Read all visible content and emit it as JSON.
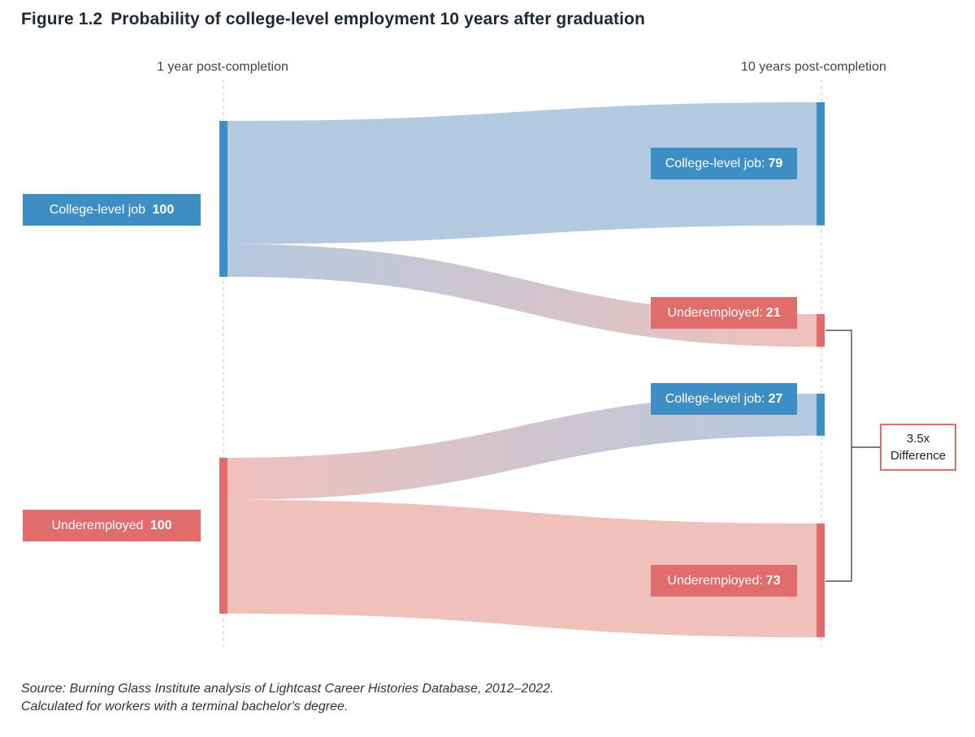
{
  "figure_number": "Figure 1.2",
  "title": "Probability of college-level employment 10 years after graduation",
  "chart_data": {
    "type": "sankey",
    "stages": [
      "1 year post-completion",
      "10 years post-completion"
    ],
    "sources": [
      {
        "name": "College-level job",
        "value": 100,
        "color": "#3d8ec4"
      },
      {
        "name": "Underemployed",
        "value": 100,
        "color": "#e06c6c"
      }
    ],
    "flows": [
      {
        "from": "College-level job",
        "to": "College-level job",
        "label": "College-level job:",
        "value": 79
      },
      {
        "from": "College-level job",
        "to": "Underemployed",
        "label": "Underemployed:",
        "value": 21
      },
      {
        "from": "Underemployed",
        "to": "College-level job",
        "label": "College-level job:",
        "value": 27
      },
      {
        "from": "Underemployed",
        "to": "Underemployed",
        "label": "Underemployed:",
        "value": 73
      }
    ],
    "annotation": {
      "line1": "3.5x",
      "line2": "Difference"
    },
    "colors": {
      "blue": "#3d8ec4",
      "red": "#e06c6c",
      "blue_flow": "#b3c9e0",
      "red_flow": "#f0c0bb"
    }
  },
  "source_line1": "Source: Burning Glass Institute analysis of Lightcast Career Histories Database, 2012–2022.",
  "source_line2": "Calculated for workers with a terminal bachelor's degree."
}
